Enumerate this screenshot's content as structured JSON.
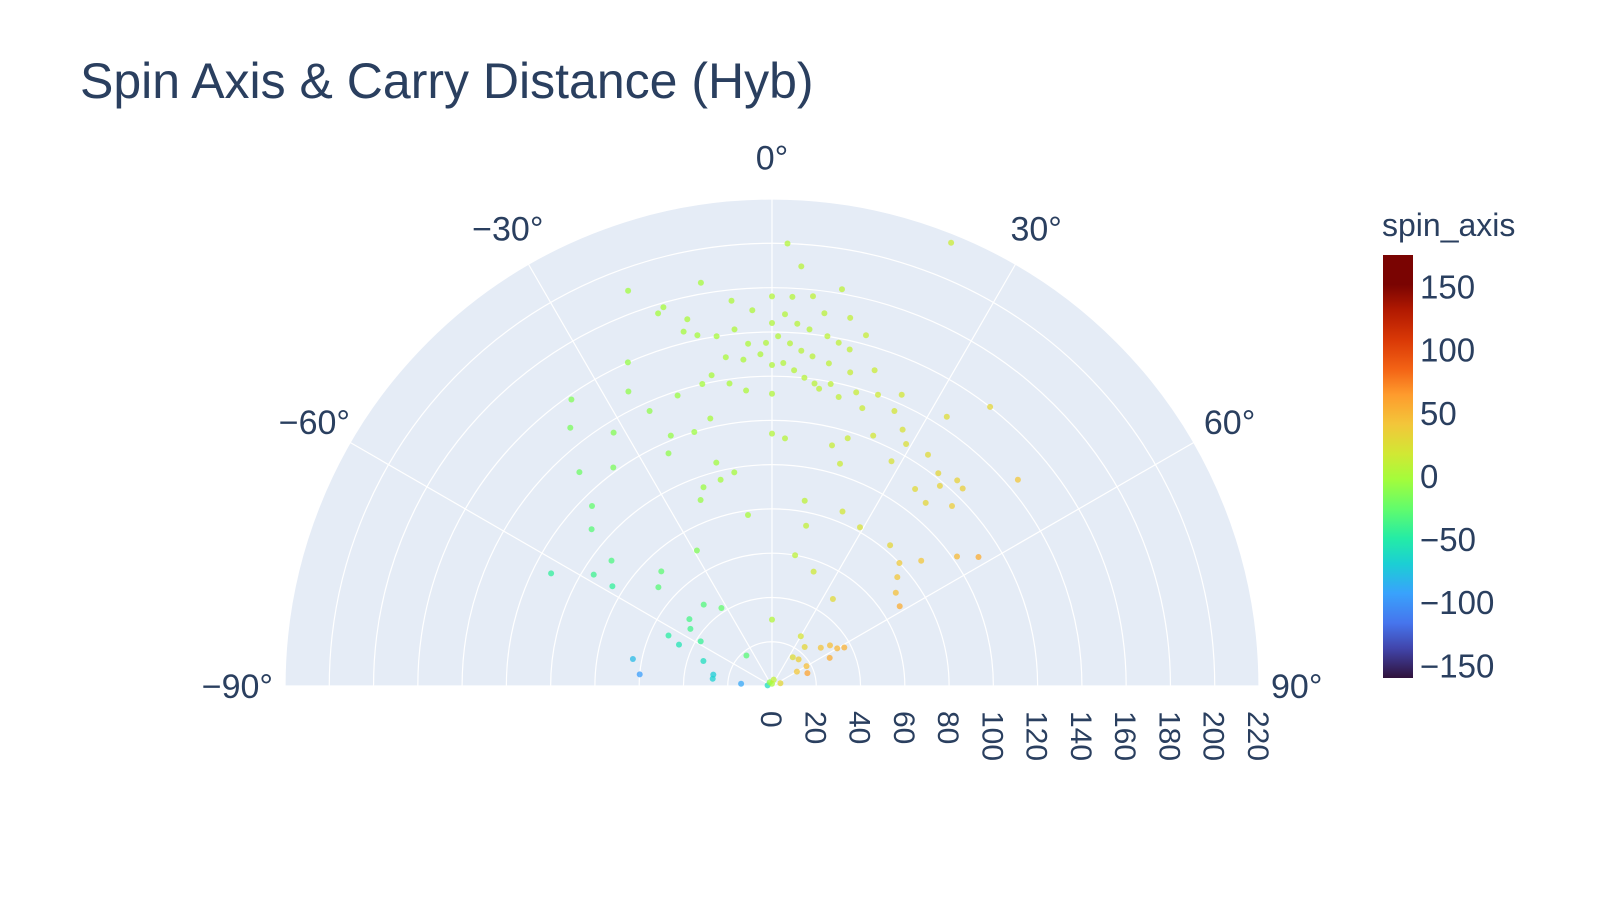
{
  "chart_data": {
    "type": "scatter",
    "subtype": "polar",
    "title": "Spin Axis & Carry Distance (Hyb)",
    "theta_unit": "degrees",
    "theta_range": [
      -90,
      90
    ],
    "theta_ticks": [
      -90,
      -60,
      -30,
      0,
      30,
      60,
      90
    ],
    "theta_tick_labels": [
      "−90°",
      "−60°",
      "−30°",
      "0°",
      "30°",
      "60°",
      "90°"
    ],
    "radial_range": [
      0,
      220
    ],
    "radial_ticks": [
      0,
      20,
      40,
      60,
      80,
      100,
      120,
      140,
      160,
      180,
      200,
      220
    ],
    "radial_tick_labels": [
      "0",
      "20",
      "40",
      "60",
      "80",
      "100",
      "120",
      "140",
      "160",
      "180",
      "200",
      "220"
    ],
    "grid": true,
    "colorbar": {
      "title": "spin_axis",
      "colorscale": "Turbo",
      "range": [
        -160,
        175
      ],
      "ticks": [
        150,
        100,
        50,
        0,
        -50,
        -100,
        -150
      ],
      "tick_labels": [
        "150",
        "100",
        "50",
        "0",
        "−50",
        "−100",
        "−150"
      ]
    },
    "series": [
      {
        "points": [
          {
            "theta": 2,
            "r": 200,
            "c": 4
          },
          {
            "theta": 22,
            "r": 216,
            "c": 14
          },
          {
            "theta": -20,
            "r": 190,
            "c": -4
          },
          {
            "theta": -17,
            "r": 176,
            "c": -3
          },
          {
            "theta": 4,
            "r": 190,
            "c": 6
          },
          {
            "theta": 10,
            "r": 182,
            "c": 8
          },
          {
            "theta": -10,
            "r": 185,
            "c": -2
          },
          {
            "theta": -13,
            "r": 170,
            "c": 0
          },
          {
            "theta": -6,
            "r": 175,
            "c": 1
          },
          {
            "theta": 0,
            "r": 176,
            "c": 4
          },
          {
            "theta": 3,
            "r": 176,
            "c": 4
          },
          {
            "theta": 6,
            "r": 177,
            "c": 8
          },
          {
            "theta": 8,
            "r": 170,
            "c": 7
          },
          {
            "theta": 12,
            "r": 170,
            "c": 10
          },
          {
            "theta": 15,
            "r": 164,
            "c": 12
          },
          {
            "theta": -3,
            "r": 170,
            "c": 2
          },
          {
            "theta": -6,
            "r": 162,
            "c": 2
          },
          {
            "theta": -9,
            "r": 160,
            "c": -1
          },
          {
            "theta": -12,
            "r": 162,
            "c": -2
          },
          {
            "theta": -14,
            "r": 165,
            "c": -2
          },
          {
            "theta": -16,
            "r": 178,
            "c": -2
          },
          {
            "theta": 0,
            "r": 164,
            "c": 3
          },
          {
            "theta": 2,
            "r": 168,
            "c": 4
          },
          {
            "theta": 4,
            "r": 164,
            "c": 5
          },
          {
            "theta": 6,
            "r": 162,
            "c": 5
          },
          {
            "theta": 9,
            "r": 160,
            "c": 8
          },
          {
            "theta": 11,
            "r": 158,
            "c": 9
          },
          {
            "theta": 13,
            "r": 156,
            "c": 10
          },
          {
            "theta": -4,
            "r": 155,
            "c": 1
          },
          {
            "theta": -1,
            "r": 155,
            "c": 3
          },
          {
            "theta": 1,
            "r": 158,
            "c": 4
          },
          {
            "theta": 3,
            "r": 155,
            "c": 5
          },
          {
            "theta": 5,
            "r": 152,
            "c": 6
          },
          {
            "theta": 7,
            "r": 150,
            "c": 7
          },
          {
            "theta": 10,
            "r": 148,
            "c": 9
          },
          {
            "theta": 14,
            "r": 146,
            "c": 12
          },
          {
            "theta": 18,
            "r": 150,
            "c": 14
          },
          {
            "theta": -2,
            "r": 150,
            "c": 2
          },
          {
            "theta": -5,
            "r": 148,
            "c": 1
          },
          {
            "theta": -8,
            "r": 150,
            "c": 0
          },
          {
            "theta": 0,
            "r": 145,
            "c": 3
          },
          {
            "theta": 2,
            "r": 146,
            "c": 4
          },
          {
            "theta": 4,
            "r": 143,
            "c": 5
          },
          {
            "theta": 6,
            "r": 140,
            "c": 6
          },
          {
            "theta": 8,
            "r": 138,
            "c": 7
          },
          {
            "theta": 11,
            "r": 139,
            "c": 9
          },
          {
            "theta": 16,
            "r": 138,
            "c": 13
          },
          {
            "theta": 20,
            "r": 140,
            "c": 16
          },
          {
            "theta": 24,
            "r": 144,
            "c": 18
          },
          {
            "theta": -11,
            "r": 143,
            "c": -1
          },
          {
            "theta": -13,
            "r": 140,
            "c": -2
          },
          {
            "theta": -24,
            "r": 160,
            "c": -8
          },
          {
            "theta": -26,
            "r": 148,
            "c": -10
          },
          {
            "theta": -35,
            "r": 158,
            "c": -15
          },
          {
            "theta": -38,
            "r": 148,
            "c": -18
          },
          {
            "theta": -32,
            "r": 135,
            "c": -14
          },
          {
            "theta": -24,
            "r": 136,
            "c": -10
          },
          {
            "theta": -18,
            "r": 138,
            "c": -6
          },
          {
            "theta": -8,
            "r": 138,
            "c": 0
          },
          {
            "theta": -5,
            "r": 134,
            "c": 1
          },
          {
            "theta": 0,
            "r": 132,
            "c": 3
          },
          {
            "theta": 9,
            "r": 136,
            "c": 8
          },
          {
            "theta": 13,
            "r": 134,
            "c": 10
          },
          {
            "theta": 18,
            "r": 132,
            "c": 14
          },
          {
            "theta": 24,
            "r": 136,
            "c": 19
          },
          {
            "theta": 27,
            "r": 130,
            "c": 22
          },
          {
            "theta": 33,
            "r": 145,
            "c": 26
          },
          {
            "theta": 38,
            "r": 160,
            "c": 30
          },
          {
            "theta": 50,
            "r": 145,
            "c": 40
          },
          {
            "theta": 29,
            "r": 125,
            "c": 24
          },
          {
            "theta": 34,
            "r": 126,
            "c": 27
          },
          {
            "theta": 38,
            "r": 122,
            "c": 30
          },
          {
            "theta": 40,
            "r": 118,
            "c": 32
          },
          {
            "theta": 42,
            "r": 125,
            "c": 33
          },
          {
            "theta": 44,
            "r": 124,
            "c": 35
          },
          {
            "theta": 36,
            "r": 110,
            "c": 28
          },
          {
            "theta": 40,
            "r": 108,
            "c": 30
          },
          {
            "theta": 45,
            "r": 115,
            "c": 36
          },
          {
            "theta": 28,
            "r": 115,
            "c": 22
          },
          {
            "theta": 22,
            "r": 122,
            "c": 18
          },
          {
            "theta": 17,
            "r": 117,
            "c": 14
          },
          {
            "theta": 14,
            "r": 112,
            "c": 12
          },
          {
            "theta": 17,
            "r": 105,
            "c": 14
          },
          {
            "theta": -13,
            "r": 124,
            "c": -2
          },
          {
            "theta": -17,
            "r": 120,
            "c": -5
          },
          {
            "theta": -22,
            "r": 122,
            "c": -8
          },
          {
            "theta": -24,
            "r": 115,
            "c": -10
          },
          {
            "theta": -14,
            "r": 104,
            "c": -4
          },
          {
            "theta": -36,
            "r": 122,
            "c": -17
          },
          {
            "theta": -42,
            "r": 130,
            "c": -22
          },
          {
            "theta": 0,
            "r": 114,
            "c": 4
          },
          {
            "theta": 3,
            "r": 112,
            "c": 5
          },
          {
            "theta": -10,
            "r": 98,
            "c": -2
          },
          {
            "theta": -14,
            "r": 96,
            "c": -3
          },
          {
            "theta": -19,
            "r": 95,
            "c": -6
          },
          {
            "theta": -21,
            "r": 90,
            "c": -7
          },
          {
            "theta": -45,
            "r": 115,
            "c": -26
          },
          {
            "theta": -49,
            "r": 108,
            "c": -30
          },
          {
            "theta": -63,
            "r": 112,
            "c": -45
          },
          {
            "theta": -58,
            "r": 95,
            "c": -40
          },
          {
            "theta": -52,
            "r": 92,
            "c": -34
          },
          {
            "theta": -8,
            "r": 78,
            "c": -1
          },
          {
            "theta": 10,
            "r": 85,
            "c": 8
          },
          {
            "theta": 22,
            "r": 85,
            "c": 18
          },
          {
            "theta": 29,
            "r": 82,
            "c": 22
          },
          {
            "theta": 40,
            "r": 83,
            "c": 30
          },
          {
            "theta": 50,
            "r": 88,
            "c": 40
          },
          {
            "theta": 55,
            "r": 102,
            "c": 48
          },
          {
            "theta": 58,
            "r": 110,
            "c": 55
          },
          {
            "theta": 46,
            "r": 80,
            "c": 38
          },
          {
            "theta": 49,
            "r": 75,
            "c": 40
          },
          {
            "theta": 53,
            "r": 70,
            "c": 44
          },
          {
            "theta": 58,
            "r": 68,
            "c": 55
          },
          {
            "theta": 12,
            "r": 74,
            "c": 10
          },
          {
            "theta": 10,
            "r": 60,
            "c": 8
          },
          {
            "theta": 20,
            "r": 55,
            "c": 16
          },
          {
            "theta": 35,
            "r": 48,
            "c": 28
          },
          {
            "theta": -29,
            "r": 70,
            "c": -15
          },
          {
            "theta": -44,
            "r": 72,
            "c": -28
          },
          {
            "theta": -49,
            "r": 68,
            "c": -30
          },
          {
            "theta": -58,
            "r": 85,
            "c": -44
          },
          {
            "theta": -51,
            "r": 48,
            "c": -36
          },
          {
            "theta": -33,
            "r": 42,
            "c": -26
          },
          {
            "theta": -40,
            "r": 48,
            "c": -32
          },
          {
            "theta": -55,
            "r": 45,
            "c": -38
          },
          {
            "theta": -64,
            "r": 52,
            "c": -48
          },
          {
            "theta": -58,
            "r": 38,
            "c": -42
          },
          {
            "theta": -66,
            "r": 46,
            "c": -55
          },
          {
            "theta": -70,
            "r": 33,
            "c": -60
          },
          {
            "theta": -79,
            "r": 27,
            "c": -70
          },
          {
            "theta": -79,
            "r": 64,
            "c": -80
          },
          {
            "theta": -85,
            "r": 60,
            "c": -95
          },
          {
            "theta": -83,
            "r": 27,
            "c": -68
          },
          {
            "theta": -86,
            "r": 14,
            "c": -90
          },
          {
            "theta": -40,
            "r": 18,
            "c": -30
          },
          {
            "theta": 0,
            "r": 30,
            "c": 3
          },
          {
            "theta": 30,
            "r": 26,
            "c": 20
          },
          {
            "theta": 40,
            "r": 23,
            "c": 30
          },
          {
            "theta": 60,
            "r": 18,
            "c": 45
          },
          {
            "theta": 45,
            "r": 17,
            "c": 35
          },
          {
            "theta": 36,
            "r": 16,
            "c": 26
          },
          {
            "theta": 52,
            "r": 28,
            "c": 42
          },
          {
            "theta": 55,
            "r": 32,
            "c": 45
          },
          {
            "theta": 60,
            "r": 34,
            "c": 50
          },
          {
            "theta": 62,
            "r": 37,
            "c": 52
          },
          {
            "theta": 64,
            "r": 29,
            "c": 55
          },
          {
            "theta": 70,
            "r": 17,
            "c": 60
          },
          {
            "theta": 60,
            "r": 13,
            "c": 40
          },
          {
            "theta": 72,
            "r": 4,
            "c": 30
          },
          {
            "theta": -82,
            "r": 2,
            "c": -60
          },
          {
            "theta": -30,
            "r": 2,
            "c": -10
          },
          {
            "theta": 0,
            "r": 1,
            "c": 0
          },
          {
            "theta": 15,
            "r": 3,
            "c": 10
          }
        ]
      }
    ]
  }
}
